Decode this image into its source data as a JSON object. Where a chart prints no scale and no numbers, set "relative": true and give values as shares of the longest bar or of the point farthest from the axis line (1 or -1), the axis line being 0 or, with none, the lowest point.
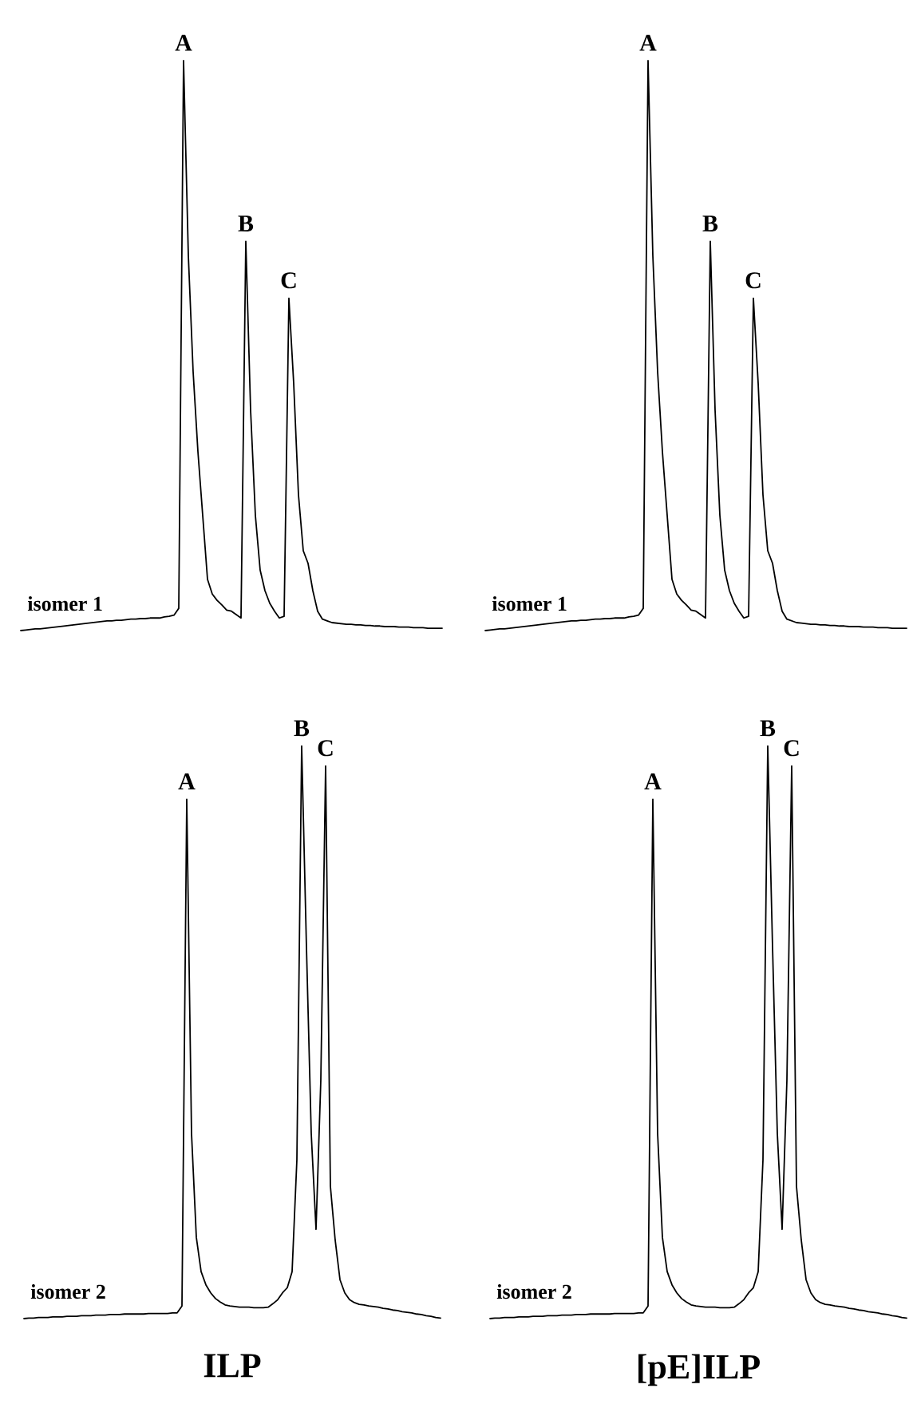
{
  "chart_data": [
    {
      "type": "line",
      "relative": true,
      "categories": [
        null,
        null,
        null,
        null,
        null,
        null,
        null,
        null,
        null,
        null,
        null,
        null,
        null,
        null,
        null,
        null,
        null,
        null,
        null,
        null,
        null,
        null,
        null,
        null,
        null,
        null,
        null,
        null,
        null,
        null,
        null,
        null,
        null,
        null,
        null,
        null,
        null,
        null,
        null,
        null,
        null,
        null,
        null,
        null,
        null,
        null,
        null,
        null,
        null,
        null,
        null,
        null,
        null,
        null,
        null,
        null,
        null,
        null,
        null,
        null,
        null,
        null,
        null,
        null,
        null,
        null,
        null,
        null,
        null,
        null,
        null,
        null,
        null,
        null,
        null,
        null,
        null,
        null,
        null,
        null,
        null,
        null,
        null,
        null,
        null,
        null,
        null,
        null,
        null
      ],
      "series": [
        {
          "color": "#000000",
          "values": [
            0,
            0.001,
            0.002,
            0.003,
            0.003,
            0.004,
            0.005,
            0.006,
            0.007,
            0.008,
            0.009,
            0.01,
            0.011,
            0.012,
            0.013,
            0.014,
            0.015,
            0.016,
            0.017,
            0.017,
            0.018,
            0.018,
            0.019,
            0.02,
            0.02,
            0.021,
            0.021,
            0.022,
            0.022,
            0.022,
            0.024,
            0.025,
            0.027,
            0.039,
            1,
            0.658,
            0.454,
            0.314,
            0.202,
            0.09,
            0.064,
            0.053,
            0.045,
            0.036,
            0.034,
            0.028,
            0.022,
            0.683,
            0.387,
            0.202,
            0.106,
            0.07,
            0.048,
            0.034,
            0.022,
            0.025,
            0.583,
            0.434,
            0.238,
            0.14,
            0.118,
            0.07,
            0.034,
            0.02,
            0.017,
            0.014,
            0.013,
            0.012,
            0.011,
            0.011,
            0.01,
            0.01,
            0.009,
            0.009,
            0.008,
            0.008,
            0.007,
            0.007,
            0.007,
            0.006,
            0.006,
            0.006,
            0.005,
            0.005,
            0.005,
            0.004,
            0.004,
            0.004,
            0.004
          ]
        }
      ],
      "annotations": [
        {
          "text": "A",
          "y": 1
        },
        {
          "text": "B",
          "y": 0.683
        },
        {
          "text": "C",
          "y": 0.583
        },
        "isomer 1"
      ]
    },
    {
      "type": "line",
      "relative": true,
      "categories": [
        null,
        null,
        null,
        null,
        null,
        null,
        null,
        null,
        null,
        null,
        null,
        null,
        null,
        null,
        null,
        null,
        null,
        null,
        null,
        null,
        null,
        null,
        null,
        null,
        null,
        null,
        null,
        null,
        null,
        null,
        null,
        null,
        null,
        null,
        null,
        null,
        null,
        null,
        null,
        null,
        null,
        null,
        null,
        null,
        null,
        null,
        null,
        null,
        null,
        null,
        null,
        null,
        null,
        null,
        null,
        null,
        null,
        null,
        null,
        null,
        null,
        null,
        null,
        null,
        null,
        null,
        null,
        null,
        null,
        null,
        null,
        null,
        null,
        null,
        null,
        null,
        null,
        null,
        null,
        null,
        null,
        null,
        null,
        null,
        null,
        null,
        null,
        null,
        null
      ],
      "series": [
        {
          "color": "#000000",
          "values": [
            0,
            0.001,
            0.002,
            0.003,
            0.003,
            0.004,
            0.005,
            0.006,
            0.007,
            0.008,
            0.009,
            0.01,
            0.011,
            0.012,
            0.013,
            0.014,
            0.015,
            0.016,
            0.017,
            0.017,
            0.018,
            0.018,
            0.019,
            0.02,
            0.02,
            0.021,
            0.021,
            0.022,
            0.022,
            0.022,
            0.024,
            0.025,
            0.027,
            0.039,
            1,
            0.658,
            0.454,
            0.314,
            0.202,
            0.09,
            0.064,
            0.053,
            0.045,
            0.036,
            0.034,
            0.028,
            0.022,
            0.683,
            0.387,
            0.202,
            0.106,
            0.07,
            0.048,
            0.034,
            0.022,
            0.025,
            0.583,
            0.434,
            0.238,
            0.14,
            0.118,
            0.07,
            0.034,
            0.02,
            0.017,
            0.014,
            0.013,
            0.012,
            0.011,
            0.011,
            0.01,
            0.01,
            0.009,
            0.009,
            0.008,
            0.008,
            0.007,
            0.007,
            0.007,
            0.006,
            0.006,
            0.006,
            0.005,
            0.005,
            0.005,
            0.004,
            0.004,
            0.004,
            0.004
          ]
        }
      ],
      "annotations": [
        {
          "text": "A",
          "y": 1
        },
        {
          "text": "B",
          "y": 0.683
        },
        {
          "text": "C",
          "y": 0.583
        },
        "isomer 1"
      ]
    },
    {
      "type": "line",
      "relative": true,
      "xlabel": "ILP",
      "categories": [
        null,
        null,
        null,
        null,
        null,
        null,
        null,
        null,
        null,
        null,
        null,
        null,
        null,
        null,
        null,
        null,
        null,
        null,
        null,
        null,
        null,
        null,
        null,
        null,
        null,
        null,
        null,
        null,
        null,
        null,
        null,
        null,
        null,
        null,
        null,
        null,
        null,
        null,
        null,
        null,
        null,
        null,
        null,
        null,
        null,
        null,
        null,
        null,
        null,
        null,
        null,
        null,
        null,
        null,
        null,
        null,
        null,
        null,
        null,
        null,
        null,
        null,
        null,
        null,
        null,
        null,
        null,
        null,
        null,
        null,
        null,
        null,
        null,
        null,
        null,
        null,
        null,
        null,
        null,
        null,
        null,
        null,
        null,
        null,
        null,
        null,
        null,
        null
      ],
      "series": [
        {
          "color": "#000000",
          "values": [
            0,
            0.001,
            0.001,
            0.002,
            0.002,
            0.002,
            0.003,
            0.003,
            0.003,
            0.004,
            0.004,
            0.004,
            0.005,
            0.005,
            0.005,
            0.006,
            0.006,
            0.006,
            0.007,
            0.007,
            0.007,
            0.008,
            0.008,
            0.008,
            0.008,
            0.008,
            0.009,
            0.009,
            0.009,
            0.009,
            0.009,
            0.01,
            0.01,
            0.022,
            0.907,
            0.323,
            0.142,
            0.082,
            0.059,
            0.045,
            0.035,
            0.029,
            0.024,
            0.022,
            0.021,
            0.02,
            0.02,
            0.02,
            0.019,
            0.019,
            0.019,
            0.02,
            0.026,
            0.033,
            0.045,
            0.054,
            0.082,
            0.277,
            1,
            0.649,
            0.323,
            0.156,
            0.416,
            0.965,
            0.231,
            0.137,
            0.068,
            0.045,
            0.033,
            0.028,
            0.025,
            0.024,
            0.022,
            0.021,
            0.02,
            0.018,
            0.017,
            0.015,
            0.014,
            0.012,
            0.011,
            0.01,
            0.008,
            0.007,
            0.005,
            0.004,
            0.002,
            0.001
          ]
        }
      ],
      "annotations": [
        {
          "text": "A",
          "y": 0.907
        },
        {
          "text": "B",
          "y": 1
        },
        {
          "text": "C",
          "y": 0.965
        },
        "isomer 2"
      ]
    },
    {
      "type": "line",
      "relative": true,
      "xlabel": "[pE]ILP",
      "categories": [
        null,
        null,
        null,
        null,
        null,
        null,
        null,
        null,
        null,
        null,
        null,
        null,
        null,
        null,
        null,
        null,
        null,
        null,
        null,
        null,
        null,
        null,
        null,
        null,
        null,
        null,
        null,
        null,
        null,
        null,
        null,
        null,
        null,
        null,
        null,
        null,
        null,
        null,
        null,
        null,
        null,
        null,
        null,
        null,
        null,
        null,
        null,
        null,
        null,
        null,
        null,
        null,
        null,
        null,
        null,
        null,
        null,
        null,
        null,
        null,
        null,
        null,
        null,
        null,
        null,
        null,
        null,
        null,
        null,
        null,
        null,
        null,
        null,
        null,
        null,
        null,
        null,
        null,
        null,
        null,
        null,
        null,
        null,
        null,
        null,
        null,
        null,
        null
      ],
      "series": [
        {
          "color": "#000000",
          "values": [
            0,
            0.001,
            0.001,
            0.002,
            0.002,
            0.002,
            0.003,
            0.003,
            0.003,
            0.004,
            0.004,
            0.004,
            0.005,
            0.005,
            0.005,
            0.006,
            0.006,
            0.006,
            0.007,
            0.007,
            0.007,
            0.008,
            0.008,
            0.008,
            0.008,
            0.008,
            0.009,
            0.009,
            0.009,
            0.009,
            0.009,
            0.01,
            0.01,
            0.022,
            0.907,
            0.323,
            0.142,
            0.082,
            0.059,
            0.045,
            0.035,
            0.029,
            0.024,
            0.022,
            0.021,
            0.02,
            0.02,
            0.02,
            0.019,
            0.019,
            0.019,
            0.02,
            0.026,
            0.033,
            0.045,
            0.054,
            0.082,
            0.277,
            1,
            0.649,
            0.323,
            0.156,
            0.416,
            0.965,
            0.231,
            0.137,
            0.068,
            0.045,
            0.033,
            0.028,
            0.025,
            0.024,
            0.022,
            0.021,
            0.02,
            0.018,
            0.017,
            0.015,
            0.014,
            0.012,
            0.011,
            0.01,
            0.008,
            0.007,
            0.005,
            0.004,
            0.002,
            0.001
          ]
        }
      ],
      "annotations": [
        {
          "text": "A",
          "y": 0.907
        },
        {
          "text": "B",
          "y": 1
        },
        {
          "text": "C",
          "y": 0.965
        },
        "isomer 2"
      ]
    }
  ]
}
